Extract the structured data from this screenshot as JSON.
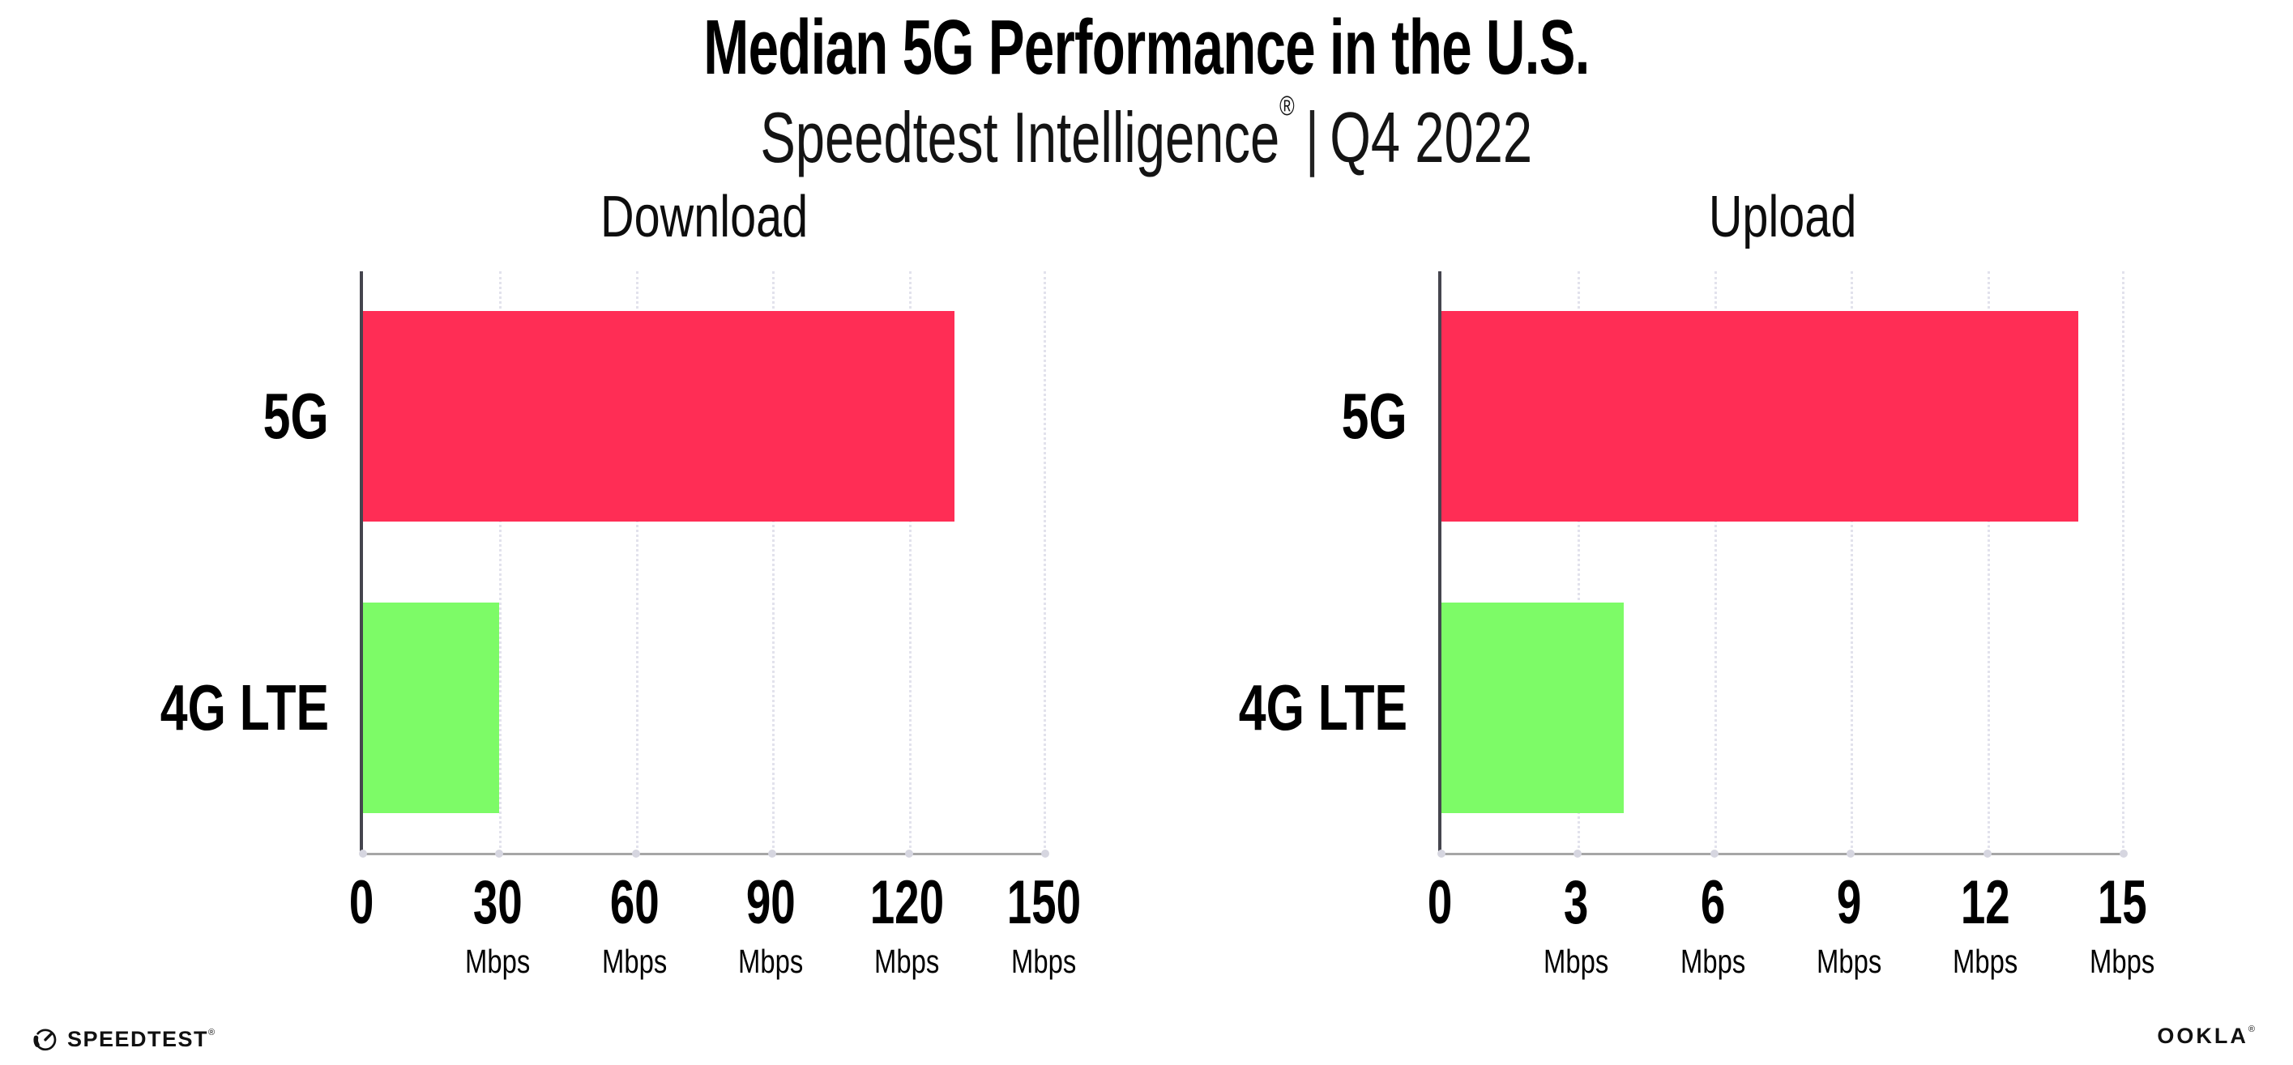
{
  "header": {
    "title": "Median 5G Performance in the U.S.",
    "subtitle_brand": "Speedtest Intelligence",
    "subtitle_reg": "®",
    "subtitle_sep": "|",
    "subtitle_period": "Q4 2022"
  },
  "chart_data": [
    {
      "type": "bar",
      "orientation": "horizontal",
      "title": "Download",
      "categories": [
        "5G",
        "4G LTE"
      ],
      "values": [
        130,
        30
      ],
      "unit": "Mbps",
      "xlim": [
        0,
        150
      ],
      "ticks": [
        0,
        30,
        60,
        90,
        120,
        150
      ],
      "bar_colors": [
        "#FF2D55",
        "#7DFB67"
      ],
      "grid": "dotted-vertical",
      "legend": "none"
    },
    {
      "type": "bar",
      "orientation": "horizontal",
      "title": "Upload",
      "categories": [
        "5G",
        "4G LTE"
      ],
      "values": [
        14,
        4
      ],
      "unit": "Mbps",
      "xlim": [
        0,
        15
      ],
      "ticks": [
        0,
        3,
        6,
        9,
        12,
        15
      ],
      "bar_colors": [
        "#FF2D55",
        "#7DFB67"
      ],
      "grid": "dotted-vertical",
      "legend": "none"
    }
  ],
  "colors": {
    "bar_5g": "#FF2D55",
    "bar_4g_lte": "#7DFB67",
    "axis_spine": "#45454e",
    "axis_bottom": "#a6a6a6",
    "gridline": "#e2e2ec",
    "text": "#000000"
  },
  "footer": {
    "speedtest_label": "SPEEDTEST",
    "speedtest_reg": "®",
    "ookla_label": "OOKLA",
    "ookla_reg": "®"
  }
}
